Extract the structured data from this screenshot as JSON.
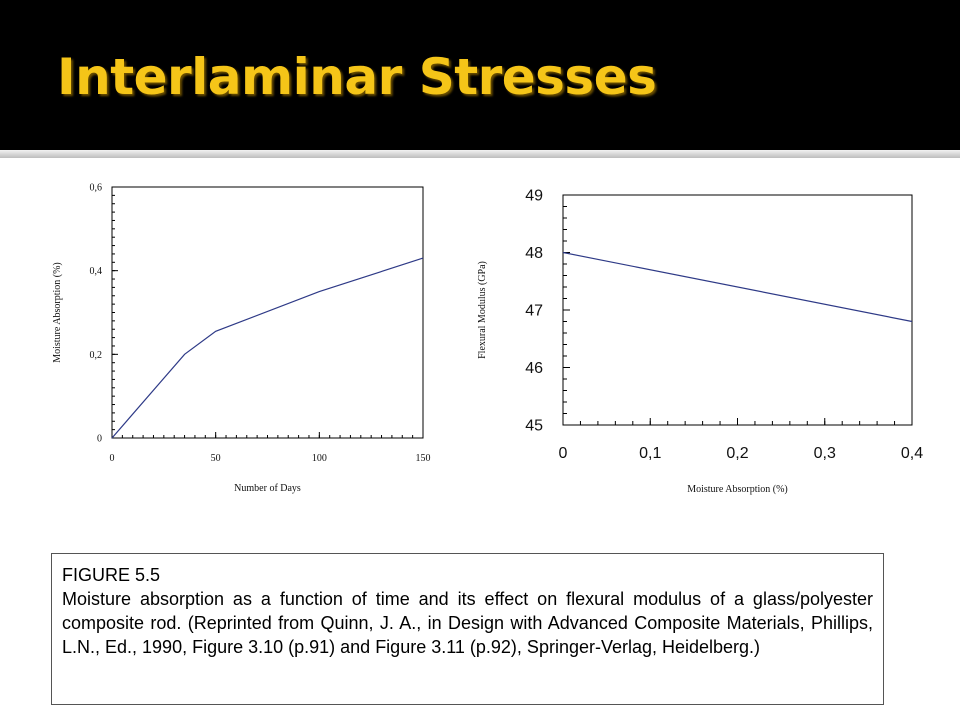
{
  "slide": {
    "title": "Interlaminar Stresses",
    "colors": {
      "header_bg": "#000000",
      "title": "#f5c518",
      "line": "#2e3a87"
    }
  },
  "chart_data": [
    {
      "type": "line",
      "title": "",
      "xlabel": "Number of Days",
      "ylabel": "Moisture Absorption (%)",
      "xlim": [
        0,
        150
      ],
      "ylim": [
        0,
        0.6
      ],
      "xticks": [
        "0",
        "50",
        "100",
        "150"
      ],
      "yticks": [
        "0",
        "0,2",
        "0,4",
        "0,6"
      ],
      "grid": false,
      "series": [
        {
          "x": [
            0,
            35,
            50,
            100,
            150
          ],
          "y": [
            0,
            0.2,
            0.255,
            0.35,
            0.43
          ]
        }
      ]
    },
    {
      "type": "line",
      "title": "",
      "xlabel": "Moisture Absorption (%)",
      "ylabel": "Flexural Modulus (GPa)",
      "xlim": [
        0,
        0.4
      ],
      "ylim": [
        45,
        49
      ],
      "xticks": [
        "0",
        "0,1",
        "0,2",
        "0,3",
        "0,4"
      ],
      "yticks": [
        "45",
        "46",
        "47",
        "48",
        "49"
      ],
      "grid": false,
      "series": [
        {
          "x": [
            0,
            0.4
          ],
          "y": [
            48,
            46.8
          ]
        }
      ]
    }
  ],
  "caption": {
    "label": "FIGURE 5.5",
    "text": "Moisture absorption as a function of time and its effect on flexural modulus of a glass/polyester composite rod. (Reprinted from Quinn, J. A., in Design with Advanced Composite Materials, Phillips, L.N., Ed., 1990, Figure 3.10 (p.91) and Figure 3.11 (p.92), Springer-Verlag, Heidelberg.)"
  }
}
